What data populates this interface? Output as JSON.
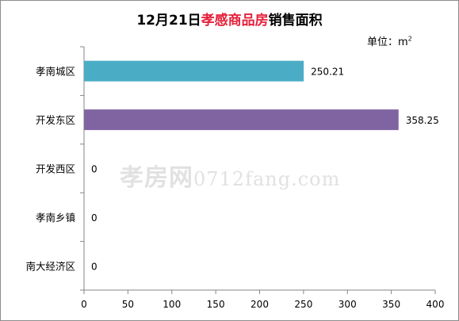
{
  "title": {
    "date": "12月21日",
    "highlight": "孝感商品房",
    "suffix": "销售面积"
  },
  "unit_label": {
    "prefix": "单位：m",
    "sup": "2"
  },
  "watermark": {
    "cn": "孝房网",
    "latin": "0712fang.com"
  },
  "colors": {
    "bar_1": "#4bacc6",
    "bar_2": "#8064a2",
    "title_highlight": "#e6213c"
  },
  "chart_data": {
    "type": "bar",
    "orientation": "horizontal",
    "categories": [
      "孝南城区",
      "开发东区",
      "开发西区",
      "孝南乡镇",
      "南大经济区"
    ],
    "values": [
      250.21,
      358.25,
      0,
      0,
      0
    ],
    "value_labels": [
      "250.21",
      "358.25",
      "0",
      "0",
      "0"
    ],
    "bar_colors": [
      "#4bacc6",
      "#8064a2",
      "#4bacc6",
      "#4bacc6",
      "#4bacc6"
    ],
    "xlim": [
      0,
      400
    ],
    "xticks": [
      0,
      50,
      100,
      150,
      200,
      250,
      300,
      350,
      400
    ],
    "grid": false
  }
}
